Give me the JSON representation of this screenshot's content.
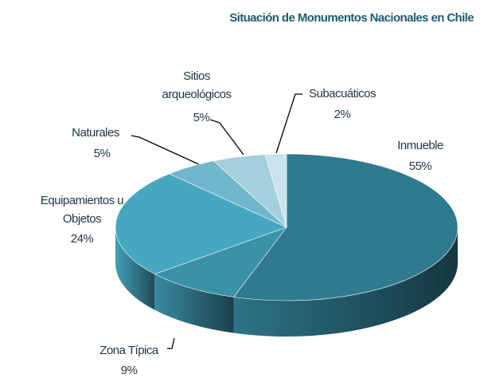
{
  "chart_data": {
    "type": "pie",
    "title": "Situación de Monumentos Nacionales en Chile",
    "categories": [
      "Inmueble",
      "Zona Típica",
      "Equipamientos u Objetos",
      "Naturales",
      "Sitios arqueológicos",
      "Subacuáticos"
    ],
    "values": [
      55,
      9,
      24,
      5,
      5,
      2
    ],
    "value_labels": [
      "55%",
      "9%",
      "24%",
      "5%",
      "5%",
      "2%"
    ],
    "colors": [
      "#2f7a8e",
      "#3b91a8",
      "#46a7c1",
      "#6fb7cb",
      "#a4cfdc",
      "#cbe3ea"
    ]
  }
}
